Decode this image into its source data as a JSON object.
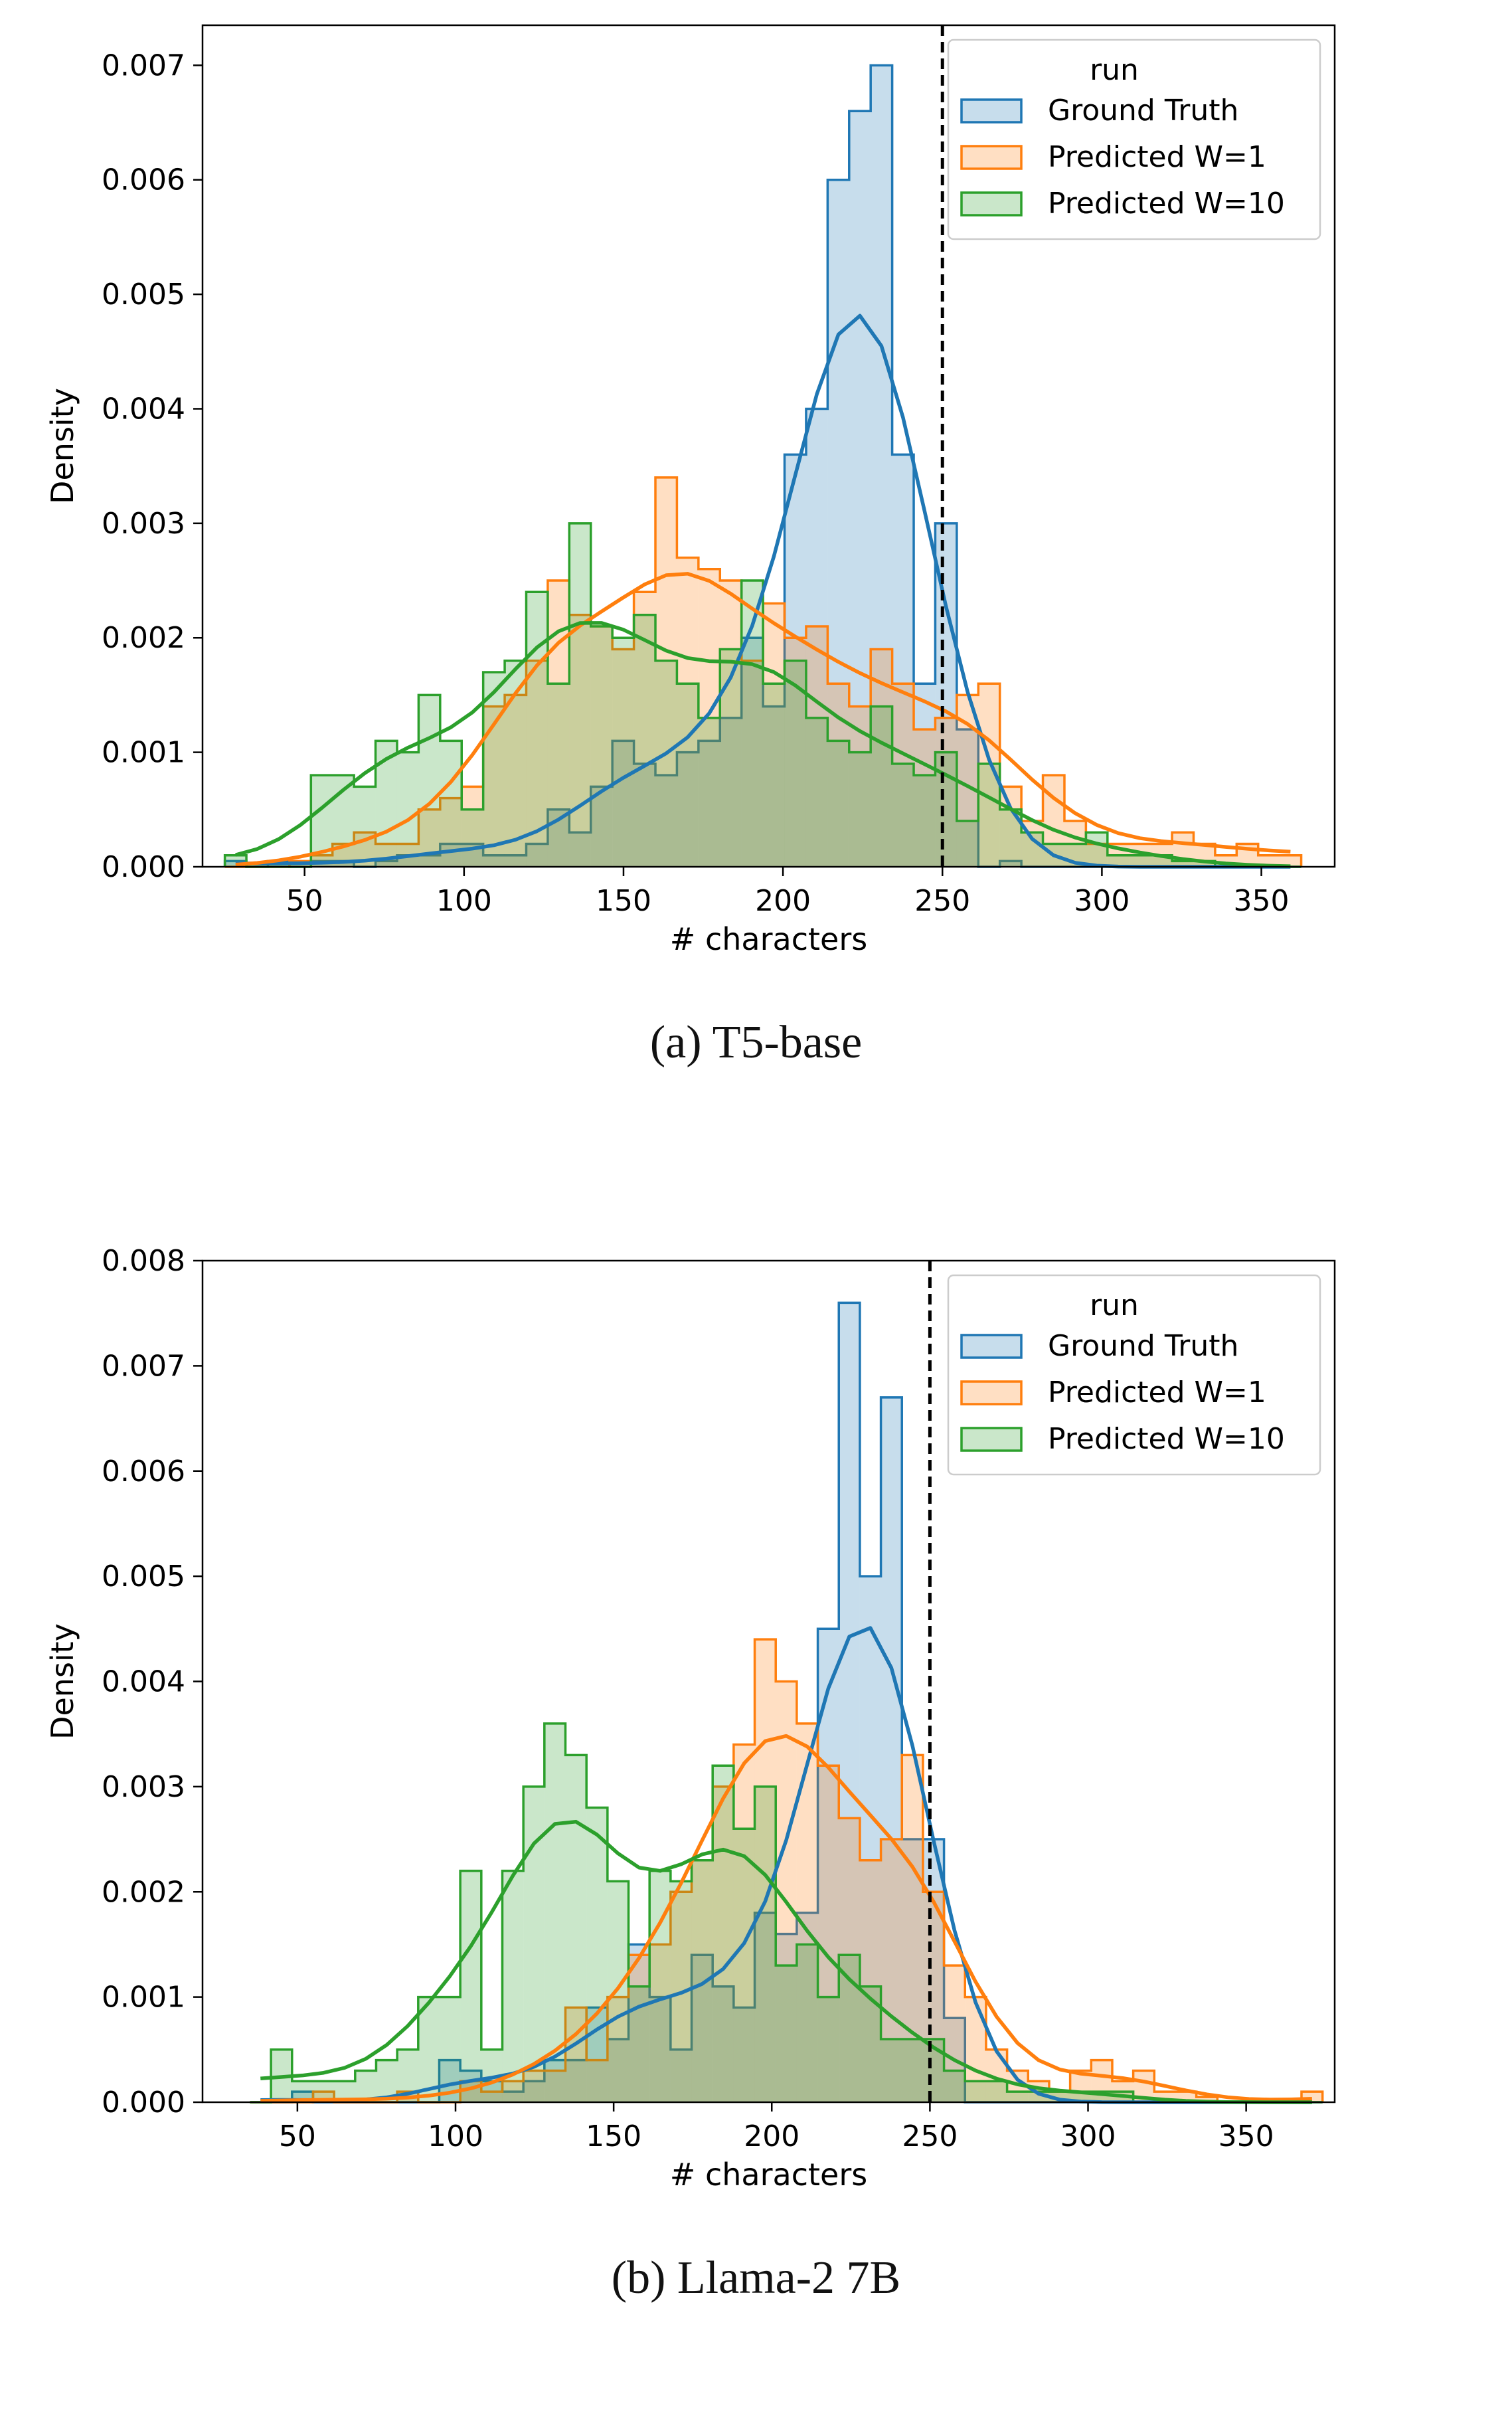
{
  "chart_data": [
    {
      "type": "histogram",
      "caption": "(a) T5-base",
      "xlabel": "# characters",
      "ylabel": "Density",
      "xlim": [
        18,
        373
      ],
      "ylim": [
        0,
        0.00735
      ],
      "xticks": [
        50,
        100,
        150,
        200,
        250,
        300,
        350
      ],
      "yticks": [
        0.0,
        0.001,
        0.002,
        0.003,
        0.004,
        0.005,
        0.006,
        0.007
      ],
      "ytick_labels": [
        "0.000",
        "0.001",
        "0.002",
        "0.003",
        "0.004",
        "0.005",
        "0.006",
        "0.007"
      ],
      "vline": {
        "x": 250,
        "style": "dashed",
        "color": "#000000"
      },
      "legend": {
        "title": "run",
        "placement": "top-right"
      },
      "series": [
        {
          "name": "Ground Truth",
          "color": "#1f77b4",
          "bin_start": 25,
          "bin_width": 6.75,
          "values": [
            5e-05,
            0,
            5e-05,
            0,
            5e-05,
            5e-05,
            0,
            5e-05,
            0.0001,
            0.0001,
            0.0002,
            0.0002,
            0.0001,
            0.0001,
            0.0002,
            0.0005,
            0.0003,
            0.0007,
            0.0011,
            0.0009,
            0.0008,
            0.001,
            0.0011,
            0.0013,
            0.002,
            0.0014,
            0.0036,
            0.004,
            0.006,
            0.0066,
            0.007,
            0.0036,
            0.0016,
            0.003,
            0.0012,
            0,
            5e-05,
            0,
            0,
            0,
            0,
            0,
            0,
            0,
            0,
            0,
            0,
            0,
            0,
            0
          ]
        },
        {
          "name": "Predicted W=1",
          "color": "#ff7f0e",
          "bin_start": 25,
          "bin_width": 6.75,
          "values": [
            0,
            0,
            0,
            5e-05,
            0.0001,
            0.0002,
            0.0003,
            0.0002,
            0.0002,
            0.0005,
            0.0006,
            0.0007,
            0.0014,
            0.0015,
            0.0018,
            0.0025,
            0.0022,
            0.0021,
            0.0019,
            0.0024,
            0.0034,
            0.0027,
            0.0026,
            0.0025,
            0.0018,
            0.0023,
            0.002,
            0.0021,
            0.0016,
            0.0014,
            0.0019,
            0.0016,
            0.0012,
            0.0013,
            0.0015,
            0.0016,
            0.0007,
            0.0004,
            0.0008,
            0.0004,
            0.0002,
            0.0002,
            0.0002,
            0.0002,
            0.0003,
            0.0002,
            0.0001,
            0.0002,
            0.0001,
            0.0001
          ]
        },
        {
          "name": "Predicted W=10",
          "color": "#2ca02c",
          "bin_start": 25,
          "bin_width": 6.75,
          "values": [
            0.0001,
            0,
            0,
            0,
            0.0008,
            0.0008,
            0.0007,
            0.0011,
            0.001,
            0.0015,
            0.0011,
            0.0005,
            0.0017,
            0.0018,
            0.0024,
            0.0016,
            0.003,
            0.0021,
            0.002,
            0.0022,
            0.0018,
            0.0016,
            0.0013,
            0.0019,
            0.0025,
            0.0016,
            0.0018,
            0.0013,
            0.0011,
            0.001,
            0.0014,
            0.0009,
            0.0008,
            0.001,
            0.0004,
            0.0009,
            0.0005,
            0.0003,
            0.0002,
            0.0002,
            0.0003,
            0.0001,
            0.0001,
            0.0001,
            5e-05,
            5e-05,
            0,
            0,
            0,
            0
          ]
        }
      ]
    },
    {
      "type": "histogram",
      "caption": "(b) Llama-2 7B",
      "xlabel": "# characters",
      "ylabel": "Density",
      "xlim": [
        20,
        378
      ],
      "ylim": [
        0,
        0.008
      ],
      "xticks": [
        50,
        100,
        150,
        200,
        250,
        300,
        350
      ],
      "yticks": [
        0.0,
        0.001,
        0.002,
        0.003,
        0.004,
        0.005,
        0.006,
        0.007,
        0.008
      ],
      "ytick_labels": [
        "0.000",
        "0.001",
        "0.002",
        "0.003",
        "0.004",
        "0.005",
        "0.006",
        "0.007",
        "0.008"
      ],
      "vline": {
        "x": 250,
        "style": "dashed",
        "color": "#000000"
      },
      "legend": {
        "title": "run",
        "placement": "top-right"
      },
      "series": [
        {
          "name": "Ground Truth",
          "color": "#1f77b4",
          "bin_start": 35,
          "bin_width": 6.65,
          "values": [
            0,
            0,
            0.0001,
            0,
            0,
            0,
            0,
            0,
            0,
            0.0004,
            0.0003,
            0.0002,
            0.0001,
            0.0002,
            0.0004,
            0.0004,
            0.0009,
            0.0006,
            0.0015,
            0.001,
            0.0005,
            0.0014,
            0.0011,
            0.0009,
            0.0018,
            0.0016,
            0.0018,
            0.0045,
            0.0076,
            0.005,
            0.0067,
            0.0025,
            0.0025,
            0.0008,
            0,
            0,
            0,
            0,
            0,
            0,
            0,
            0,
            0,
            0,
            0,
            0,
            0,
            0,
            0,
            0,
            0
          ]
        },
        {
          "name": "Predicted W=1",
          "color": "#ff7f0e",
          "bin_start": 35,
          "bin_width": 6.65,
          "values": [
            0,
            0,
            0,
            0.0001,
            0,
            0,
            0,
            0.0001,
            0,
            0,
            0.0002,
            0.0001,
            0.0002,
            0.0003,
            0.0003,
            0.0009,
            0.0004,
            0.001,
            0.0014,
            0.0015,
            0.002,
            0.0023,
            0.003,
            0.0034,
            0.0044,
            0.004,
            0.0036,
            0.0032,
            0.0027,
            0.0023,
            0.0025,
            0.0033,
            0.002,
            0.0013,
            0.001,
            0.0005,
            0.0003,
            0.0002,
            0.0001,
            0.0003,
            0.0004,
            0.0002,
            0.0003,
            0.0001,
            0.0001,
            5e-05,
            0,
            0,
            0,
            0,
            0.0001
          ]
        },
        {
          "name": "Predicted W=10",
          "color": "#2ca02c",
          "bin_start": 35,
          "bin_width": 6.65,
          "values": [
            0,
            0.0005,
            0.0002,
            0.0002,
            0.0002,
            0.0003,
            0.0004,
            0.0005,
            0.001,
            0.001,
            0.0022,
            0.0005,
            0.0022,
            0.003,
            0.0036,
            0.0033,
            0.0028,
            0.0021,
            0.0011,
            0.0022,
            0.0021,
            0.0023,
            0.0032,
            0.0026,
            0.003,
            0.0013,
            0.0015,
            0.001,
            0.0014,
            0.0011,
            0.0006,
            0.0006,
            0.0006,
            0.0003,
            0.0002,
            0.0002,
            0.0001,
            0.0001,
            0.0001,
            0.0001,
            0.0001,
            0.0001,
            0,
            0,
            0,
            0,
            0,
            0,
            0,
            0,
            0
          ]
        }
      ]
    }
  ]
}
